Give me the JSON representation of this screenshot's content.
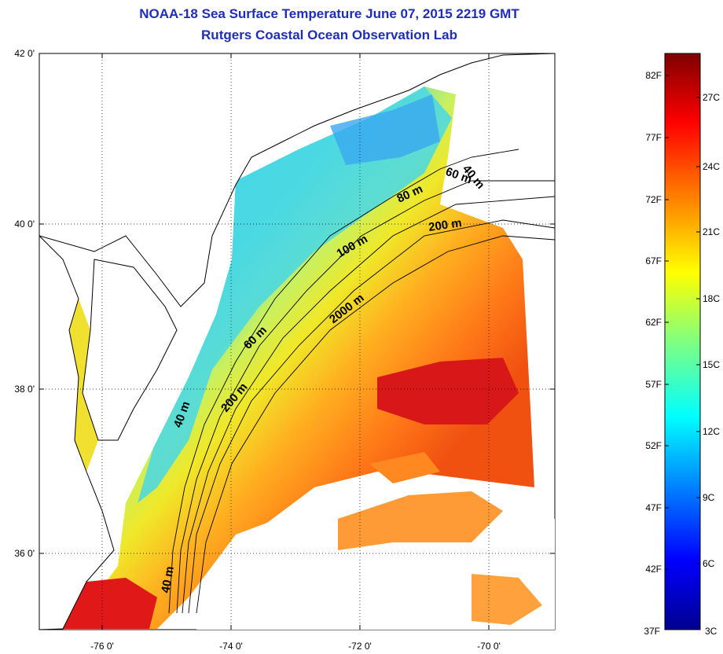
{
  "title": {
    "line1": "NOAA-18 Sea Surface Temperature June 07, 2015 2219 GMT",
    "line2": "Rutgers Coastal Ocean Observation Lab"
  },
  "map": {
    "lon_ticks": [
      "-76 0'",
      "-74 0'",
      "-72 0'",
      "-70 0'"
    ],
    "lat_ticks": [
      "42 0'",
      "40 0'",
      "38 0'",
      "36 0'"
    ],
    "lon_range": [
      -77.0,
      -69.0
    ],
    "lat_range": [
      35.0,
      42.0
    ],
    "grid": "dotted",
    "land_color": "#ffffff",
    "no_data_color": "#ffffff"
  },
  "isobaths": [
    "40 m",
    "60 m",
    "80 m",
    "200 m",
    "100 m",
    "2000 m",
    "60 m",
    "200 m",
    "40 m",
    "40 m"
  ],
  "colorbar": {
    "fahrenheit": [
      "82F",
      "77F",
      "72F",
      "67F",
      "62F",
      "57F",
      "52F",
      "47F",
      "42F",
      "37F"
    ],
    "celsius": [
      "27C",
      "24C",
      "21C",
      "18C",
      "15C",
      "12C",
      "9C",
      "6C",
      "3C"
    ],
    "range_c": [
      3,
      28
    ],
    "colormap": [
      "#7f0000",
      "#ff0000",
      "#ff8000",
      "#ffff00",
      "#80ff80",
      "#00ffff",
      "#0080ff",
      "#0000ff",
      "#00008f"
    ]
  }
}
